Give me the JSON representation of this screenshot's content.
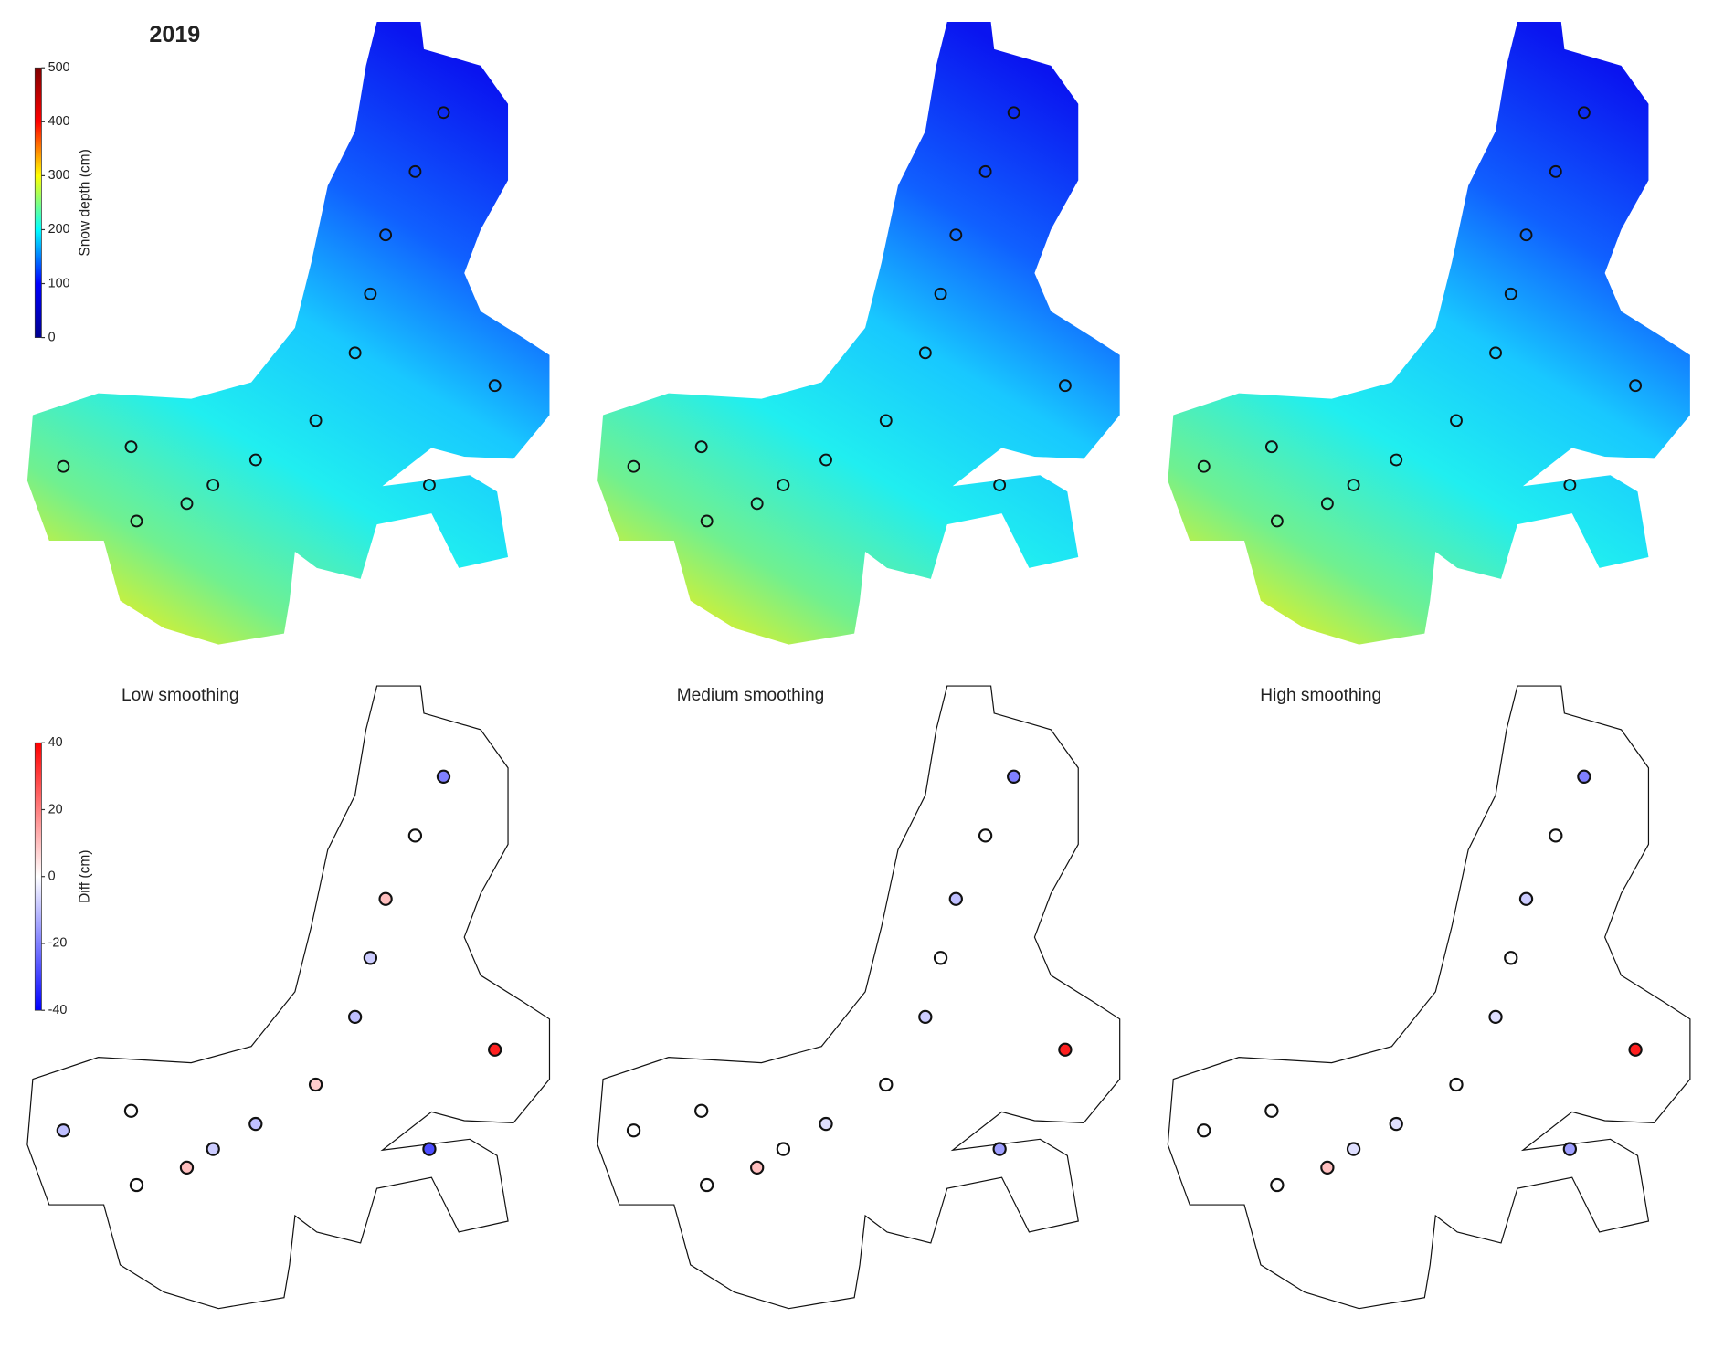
{
  "title": "2019",
  "colorbars": [
    {
      "label": "Snow depth (cm)",
      "lim": [
        0,
        500
      ],
      "ticks": [
        0,
        100,
        200,
        300,
        400,
        500
      ],
      "colors": [
        "#00008f",
        "#0000ff",
        "#00ffff",
        "#ffff00",
        "#ff0000",
        "#800000"
      ]
    },
    {
      "label": "Diff (cm)",
      "lim": [
        -40,
        40
      ],
      "ticks": [
        -40,
        -20,
        0,
        20,
        40
      ],
      "colors": [
        "#0000ff",
        "#ffffff",
        "#ff0000"
      ]
    }
  ],
  "panels": [
    {
      "title": "Low smoothing",
      "station_diff": [
        -20,
        0,
        10,
        -8,
        -10,
        35,
        8,
        0,
        -10,
        -10,
        -8,
        -28,
        10,
        0
      ]
    },
    {
      "title": "Medium smoothing",
      "station_diff": [
        -20,
        0,
        -10,
        0,
        -8,
        35,
        0,
        0,
        -5,
        0,
        0,
        -15,
        10,
        0
      ]
    },
    {
      "title": "High smoothing",
      "station_diff": [
        -20,
        0,
        -8,
        0,
        -5,
        35,
        0,
        0,
        -5,
        0,
        -5,
        -15,
        10,
        0
      ]
    }
  ]
}
